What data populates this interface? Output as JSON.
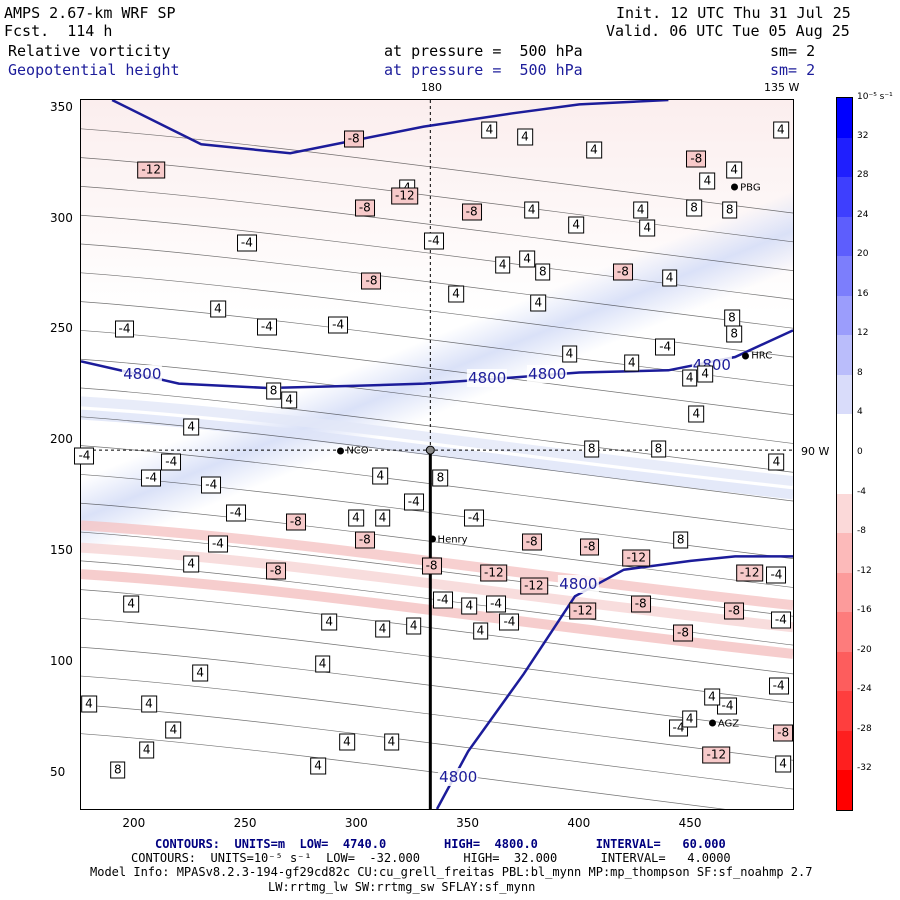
{
  "header": {
    "model": "AMPS 2.67-km WRF SP",
    "forecast": "Fcst.  114 h",
    "init": "Init. 12 UTC Thu 31 Jul 25",
    "valid": "Valid. 06 UTC Tue 05 Aug 25",
    "field1_name": "Relative vorticity",
    "field1_level": "at pressure =  500 hPa",
    "field1_sm": "sm= 2",
    "field2_name": "Geopotential height",
    "field2_level": "at pressure =  500 hPa",
    "field2_sm": "sm= 2"
  },
  "lon_labels": {
    "top_180": "180",
    "top_135w": "135 W",
    "right_90w": "90 W"
  },
  "stations": [
    {
      "name": "PBG",
      "x": 470,
      "y": 314
    },
    {
      "name": "HRC",
      "x": 475,
      "y": 238
    },
    {
      "name": "NCO",
      "x": 293,
      "y": 195
    },
    {
      "name": "Henry",
      "x": 334,
      "y": 155
    },
    {
      "name": "AGZ",
      "x": 460,
      "y": 72
    }
  ],
  "chart_data": {
    "type": "heatmap",
    "title": "Relative vorticity / Geopotential height at 500 hPa",
    "x_ticks": [
      200,
      250,
      300,
      350,
      400,
      450
    ],
    "y_ticks": [
      50,
      100,
      150,
      200,
      250,
      300,
      350
    ],
    "xlim": [
      176,
      496
    ],
    "ylim": [
      34,
      354
    ],
    "colorbar": {
      "unit_label": "10⁻⁵ s⁻¹",
      "ticks": [
        32,
        28,
        24,
        20,
        16,
        12,
        8,
        4,
        0,
        -4,
        -8,
        -12,
        -16,
        -20,
        -24,
        -28,
        -32
      ],
      "colors": {
        "positive_max": "#0000ff",
        "positive_min": "#e8ecfa",
        "negative_min": "#fbe8e8",
        "negative_max": "#ff0000"
      }
    },
    "height_contours": [
      {
        "label": "4800",
        "points": [
          [
            176,
            236
          ],
          [
            220,
            226
          ],
          [
            260,
            224
          ],
          [
            300,
            225
          ],
          [
            330,
            226
          ],
          [
            360,
            228
          ],
          [
            400,
            231
          ],
          [
            440,
            232
          ],
          [
            470,
            238
          ],
          [
            496,
            250
          ]
        ]
      },
      {
        "label": "4800",
        "points": [
          [
            336,
            34
          ],
          [
            350,
            60
          ],
          [
            375,
            95
          ],
          [
            398,
            130
          ],
          [
            420,
            142
          ],
          [
            450,
            146
          ],
          [
            470,
            148
          ],
          [
            496,
            148
          ]
        ]
      },
      {
        "label": "",
        "points": [
          [
            190,
            354
          ],
          [
            230,
            334
          ],
          [
            270,
            330
          ],
          [
            300,
            336
          ],
          [
            330,
            342
          ],
          [
            370,
            348
          ],
          [
            400,
            352
          ],
          [
            440,
            354
          ]
        ]
      }
    ],
    "height_labels": [
      {
        "text": "4800",
        "x": 204,
        "y": 230
      },
      {
        "text": "4800",
        "x": 359,
        "y": 228
      },
      {
        "text": "4800",
        "x": 386,
        "y": 230
      },
      {
        "text": "4800",
        "x": 460,
        "y": 234
      },
      {
        "text": "4800",
        "x": 400,
        "y": 135
      },
      {
        "text": "4800",
        "x": 346,
        "y": 48
      }
    ],
    "vorticity_labels": [
      {
        "text": "-8",
        "x": 299,
        "y": 336
      },
      {
        "text": "4",
        "x": 360,
        "y": 340
      },
      {
        "text": "4",
        "x": 376,
        "y": 337
      },
      {
        "text": "4",
        "x": 491,
        "y": 340
      },
      {
        "text": "-12",
        "x": 208,
        "y": 322
      },
      {
        "text": "-8",
        "x": 453,
        "y": 327
      },
      {
        "text": "4",
        "x": 407,
        "y": 331
      },
      {
        "text": "4",
        "x": 458,
        "y": 317
      },
      {
        "text": "4",
        "x": 470,
        "y": 322
      },
      {
        "text": "4",
        "x": 323,
        "y": 314
      },
      {
        "text": "-8",
        "x": 304,
        "y": 305
      },
      {
        "text": "-12",
        "x": 322,
        "y": 310
      },
      {
        "text": "-8",
        "x": 352,
        "y": 303
      },
      {
        "text": "4",
        "x": 379,
        "y": 304
      },
      {
        "text": "4",
        "x": 428,
        "y": 304
      },
      {
        "text": "4",
        "x": 431,
        "y": 296
      },
      {
        "text": "8",
        "x": 452,
        "y": 305
      },
      {
        "text": "8",
        "x": 468,
        "y": 304
      },
      {
        "text": "4",
        "x": 399,
        "y": 297
      },
      {
        "text": "-4",
        "x": 251,
        "y": 289
      },
      {
        "text": "-4",
        "x": 335,
        "y": 290
      },
      {
        "text": "4",
        "x": 366,
        "y": 279
      },
      {
        "text": "4",
        "x": 377,
        "y": 282
      },
      {
        "text": "8",
        "x": 384,
        "y": 276
      },
      {
        "text": "-8",
        "x": 420,
        "y": 276
      },
      {
        "text": "4",
        "x": 441,
        "y": 273
      },
      {
        "text": "-8",
        "x": 307,
        "y": 272
      },
      {
        "text": "4",
        "x": 345,
        "y": 266
      },
      {
        "text": "4",
        "x": 382,
        "y": 262
      },
      {
        "text": "8",
        "x": 469,
        "y": 255
      },
      {
        "text": "4",
        "x": 238,
        "y": 259
      },
      {
        "text": "-4",
        "x": 196,
        "y": 250
      },
      {
        "text": "-4",
        "x": 260,
        "y": 251
      },
      {
        "text": "-4",
        "x": 292,
        "y": 252
      },
      {
        "text": "8",
        "x": 470,
        "y": 248
      },
      {
        "text": "-4",
        "x": 439,
        "y": 242
      },
      {
        "text": "4",
        "x": 424,
        "y": 235
      },
      {
        "text": "4",
        "x": 457,
        "y": 230
      },
      {
        "text": "4",
        "x": 450,
        "y": 228
      },
      {
        "text": "4",
        "x": 396,
        "y": 239
      },
      {
        "text": "8",
        "x": 263,
        "y": 222
      },
      {
        "text": "4",
        "x": 270,
        "y": 218
      },
      {
        "text": "4",
        "x": 453,
        "y": 212
      },
      {
        "text": "4",
        "x": 226,
        "y": 206
      },
      {
        "text": "-4",
        "x": 217,
        "y": 190
      },
      {
        "text": "-4",
        "x": 235,
        "y": 180
      },
      {
        "text": "4",
        "x": 311,
        "y": 184
      },
      {
        "text": "8",
        "x": 338,
        "y": 183
      },
      {
        "text": "-4",
        "x": 326,
        "y": 172
      },
      {
        "text": "4",
        "x": 312,
        "y": 165
      },
      {
        "text": "-4",
        "x": 353,
        "y": 165
      },
      {
        "text": "-4",
        "x": 246,
        "y": 167
      },
      {
        "text": "-8",
        "x": 273,
        "y": 163
      },
      {
        "text": "4",
        "x": 300,
        "y": 165
      },
      {
        "text": "8",
        "x": 406,
        "y": 196
      },
      {
        "text": "8",
        "x": 436,
        "y": 196
      },
      {
        "text": "4",
        "x": 489,
        "y": 190
      },
      {
        "text": "-4",
        "x": 177,
        "y": 193
      },
      {
        "text": "-4",
        "x": 208,
        "y": 183
      },
      {
        "text": "-8",
        "x": 304,
        "y": 155
      },
      {
        "text": "-8",
        "x": 379,
        "y": 154
      },
      {
        "text": "-8",
        "x": 405,
        "y": 152
      },
      {
        "text": "8",
        "x": 446,
        "y": 155
      },
      {
        "text": "-12",
        "x": 426,
        "y": 147
      },
      {
        "text": "-12",
        "x": 477,
        "y": 140
      },
      {
        "text": "-4",
        "x": 489,
        "y": 139
      },
      {
        "text": "-4",
        "x": 238,
        "y": 153
      },
      {
        "text": "4",
        "x": 226,
        "y": 144
      },
      {
        "text": "-8",
        "x": 264,
        "y": 141
      },
      {
        "text": "-8",
        "x": 334,
        "y": 143
      },
      {
        "text": "-12",
        "x": 362,
        "y": 140
      },
      {
        "text": "-12",
        "x": 380,
        "y": 134
      },
      {
        "text": "-8",
        "x": 428,
        "y": 126
      },
      {
        "text": "-4",
        "x": 339,
        "y": 128
      },
      {
        "text": "4",
        "x": 351,
        "y": 125
      },
      {
        "text": "-4",
        "x": 363,
        "y": 126
      },
      {
        "text": "-12",
        "x": 402,
        "y": 123
      },
      {
        "text": "-8",
        "x": 470,
        "y": 123
      },
      {
        "text": "-4",
        "x": 491,
        "y": 119
      },
      {
        "text": "4",
        "x": 199,
        "y": 126
      },
      {
        "text": "4",
        "x": 288,
        "y": 118
      },
      {
        "text": "-4",
        "x": 369,
        "y": 118
      },
      {
        "text": "4",
        "x": 326,
        "y": 116
      },
      {
        "text": "4",
        "x": 312,
        "y": 115
      },
      {
        "text": "-8",
        "x": 447,
        "y": 113
      },
      {
        "text": "4",
        "x": 356,
        "y": 114
      },
      {
        "text": "4",
        "x": 285,
        "y": 99
      },
      {
        "text": "-4",
        "x": 490,
        "y": 89
      },
      {
        "text": "4",
        "x": 230,
        "y": 95
      },
      {
        "text": "4",
        "x": 207,
        "y": 81
      },
      {
        "text": "4",
        "x": 180,
        "y": 81
      },
      {
        "text": "-4",
        "x": 467,
        "y": 80
      },
      {
        "text": "-4",
        "x": 445,
        "y": 70
      },
      {
        "text": "4",
        "x": 460,
        "y": 84
      },
      {
        "text": "4",
        "x": 450,
        "y": 74
      },
      {
        "text": "4",
        "x": 218,
        "y": 69
      },
      {
        "text": "4",
        "x": 206,
        "y": 60
      },
      {
        "text": "4",
        "x": 296,
        "y": 64
      },
      {
        "text": "4",
        "x": 316,
        "y": 64
      },
      {
        "text": "-8",
        "x": 497,
        "y": 68
      },
      {
        "text": "-12",
        "x": 462,
        "y": 58
      },
      {
        "text": "4",
        "x": 495,
        "y": 54
      },
      {
        "text": "4",
        "x": 283,
        "y": 53
      },
      {
        "text": "8",
        "x": 193,
        "y": 51
      }
    ]
  },
  "footer": {
    "line1": "CONTOURS:  UNITS=m  LOW=  4740.0        HIGH=  4800.0        INTERVAL=   60.000",
    "line2": "CONTOURS:  UNITS=10⁻⁵ s⁻¹  LOW=  -32.000      HIGH=  32.000      INTERVAL=   4.0000",
    "line3": "Model Info: MPASv8.2.3-194-gf29cd82c CU:cu_grell_freitas PBL:bl_mynn MP:mp_thompson SF:sf_noahmp 2.7",
    "line4": "LW:rrtmg_lw SW:rrtmg_sw SFLAY:sf_mynn"
  }
}
